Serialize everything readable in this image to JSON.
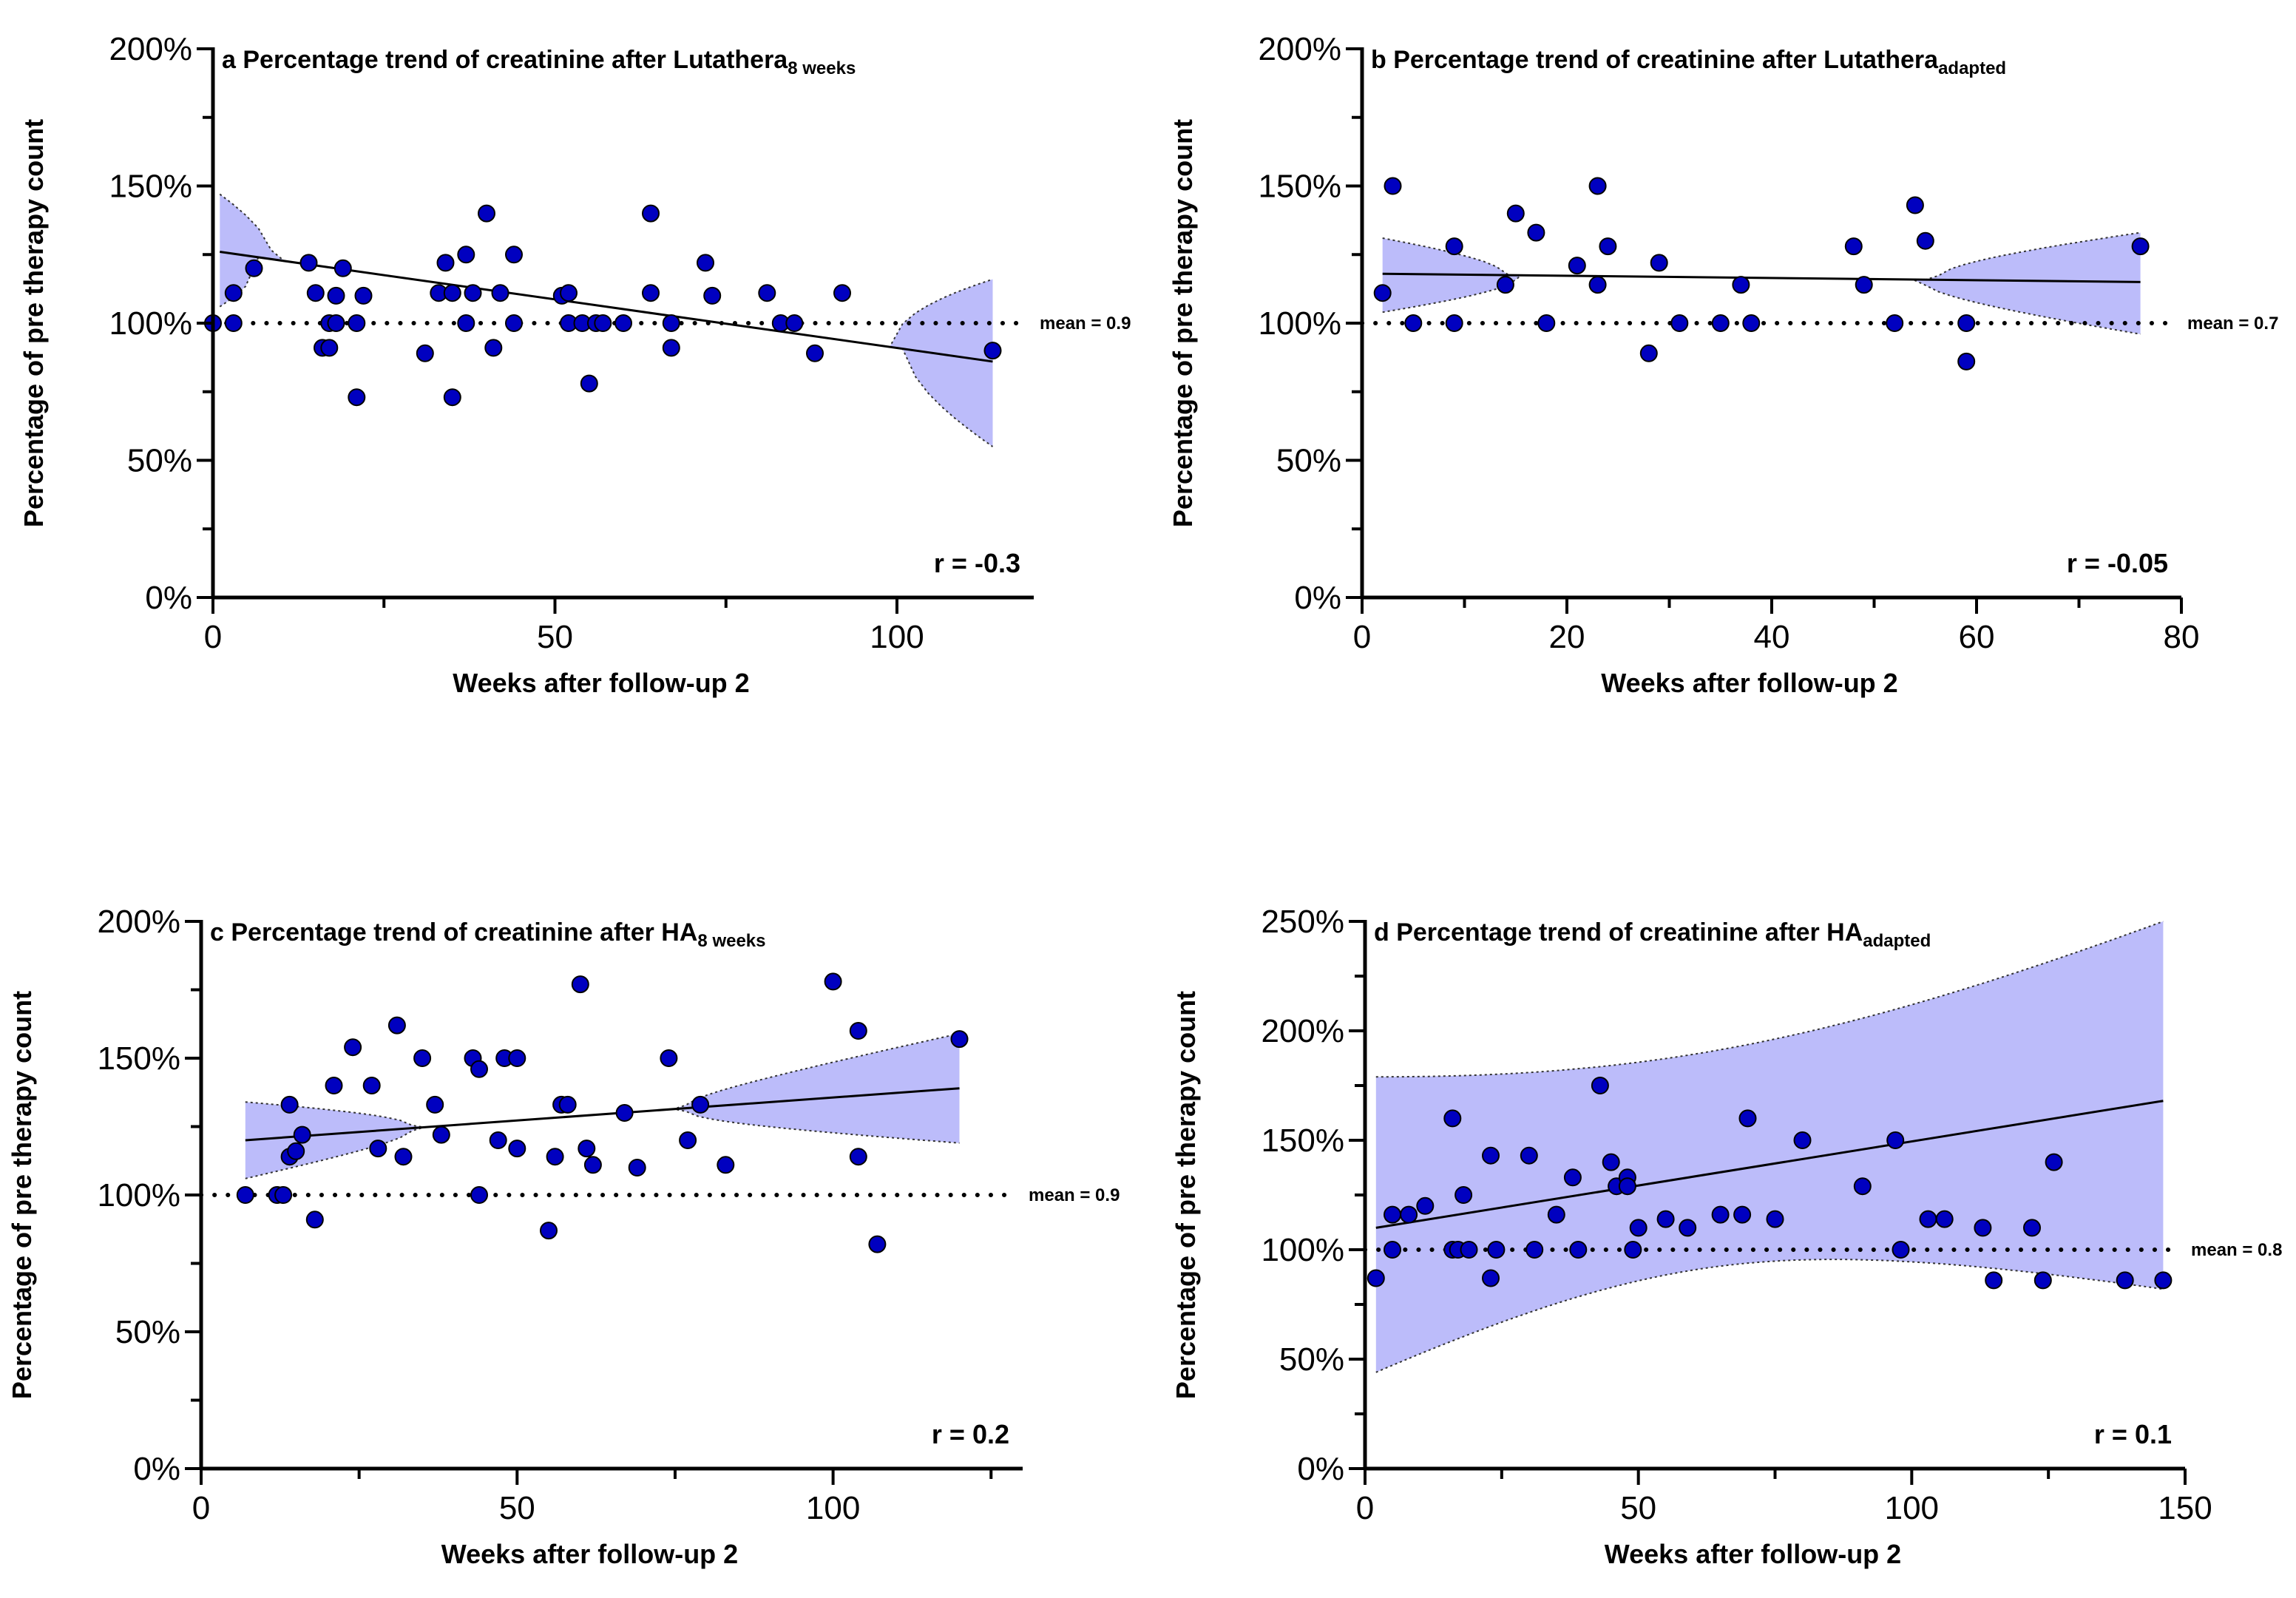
{
  "chart_data": [
    {
      "panel": "a",
      "type": "scatter",
      "title_prefix": "a Percentage trend of creatinine after Lutathera",
      "title_sub": "8 weeks",
      "xlabel": "Weeks after follow-up 2",
      "ylabel": "Percentage of pre therapy count",
      "xlim": [
        0,
        120
      ],
      "ylim": [
        0,
        2.0
      ],
      "xticks": [
        0,
        50,
        100
      ],
      "xtick_labels": [
        "0",
        "50",
        "100"
      ],
      "yticks": [
        0,
        0.5,
        1.0,
        1.5,
        2.0
      ],
      "ytick_labels": [
        "0%",
        "50%",
        "100%",
        "150%",
        "200%"
      ],
      "r_label": "r = -0.3",
      "mean_label": "mean = 0.9",
      "mean_y": 1.0,
      "regression": {
        "x0": 1,
        "y0": 1.26,
        "x1": 114,
        "y1": 0.86
      },
      "band": {
        "x": [
          1,
          114
        ],
        "upper": [
          1.47,
          1.16
        ],
        "lower": [
          1.06,
          0.55
        ],
        "center": 54
      },
      "points": [
        [
          0,
          1.0
        ],
        [
          3,
          1.11
        ],
        [
          3,
          1.0
        ],
        [
          6,
          1.2
        ],
        [
          14,
          1.22
        ],
        [
          15,
          1.11
        ],
        [
          16,
          0.91
        ],
        [
          17,
          1.0
        ],
        [
          17,
          0.91
        ],
        [
          18,
          1.1
        ],
        [
          18,
          1.0
        ],
        [
          19,
          1.2
        ],
        [
          21,
          0.73
        ],
        [
          21,
          1.0
        ],
        [
          22,
          1.1
        ],
        [
          31,
          0.89
        ],
        [
          33,
          1.11
        ],
        [
          34,
          1.22
        ],
        [
          35,
          1.11
        ],
        [
          35,
          0.73
        ],
        [
          37,
          1.25
        ],
        [
          37,
          1.0
        ],
        [
          38,
          1.11
        ],
        [
          40,
          1.4
        ],
        [
          41,
          0.91
        ],
        [
          42,
          1.11
        ],
        [
          44,
          1.25
        ],
        [
          44,
          1.0
        ],
        [
          51,
          1.1
        ],
        [
          52,
          1.11
        ],
        [
          52,
          1.0
        ],
        [
          54,
          1.0
        ],
        [
          55,
          0.78
        ],
        [
          56,
          1.0
        ],
        [
          57,
          1.0
        ],
        [
          60,
          1.0
        ],
        [
          64,
          1.4
        ],
        [
          64,
          1.11
        ],
        [
          67,
          1.0
        ],
        [
          67,
          0.91
        ],
        [
          72,
          1.22
        ],
        [
          73,
          1.1
        ],
        [
          81,
          1.11
        ],
        [
          83,
          1.0
        ],
        [
          85,
          1.0
        ],
        [
          88,
          0.89
        ],
        [
          92,
          1.11
        ],
        [
          114,
          0.9
        ]
      ]
    },
    {
      "panel": "b",
      "type": "scatter",
      "title_prefix": "b Percentage trend of creatinine after Lutathera",
      "title_sub": "adapted",
      "xlabel": "Weeks after follow-up 2",
      "ylabel": "Percentage of pre therapy count",
      "xlim": [
        0,
        80
      ],
      "ylim": [
        0,
        2.0
      ],
      "xticks": [
        0,
        20,
        40,
        60,
        80
      ],
      "xtick_labels": [
        "0",
        "20",
        "40",
        "60",
        "80"
      ],
      "yticks": [
        0,
        0.5,
        1.0,
        1.5,
        2.0
      ],
      "ytick_labels": [
        "0%",
        "50%",
        "100%",
        "150%",
        "200%"
      ],
      "r_label": "r = -0.05",
      "mean_label": "mean = 0.7",
      "mean_y": 1.0,
      "regression": {
        "x0": 2,
        "y0": 1.18,
        "x1": 76,
        "y1": 1.15
      },
      "band": {
        "x": [
          2,
          76
        ],
        "upper": [
          1.31,
          1.33
        ],
        "lower": [
          1.04,
          0.96
        ],
        "center": 35
      },
      "points": [
        [
          2,
          1.11
        ],
        [
          3,
          1.5
        ],
        [
          5,
          1.0
        ],
        [
          9,
          1.28
        ],
        [
          9,
          1.0
        ],
        [
          14,
          1.14
        ],
        [
          15,
          1.4
        ],
        [
          17,
          1.33
        ],
        [
          18,
          1.0
        ],
        [
          21,
          1.21
        ],
        [
          23,
          1.5
        ],
        [
          23,
          1.14
        ],
        [
          24,
          1.28
        ],
        [
          28,
          0.89
        ],
        [
          29,
          1.22
        ],
        [
          31,
          1.0
        ],
        [
          35,
          1.0
        ],
        [
          37,
          1.14
        ],
        [
          38,
          1.0
        ],
        [
          48,
          1.28
        ],
        [
          49,
          1.14
        ],
        [
          52,
          1.0
        ],
        [
          54,
          1.43
        ],
        [
          55,
          1.3
        ],
        [
          59,
          1.0
        ],
        [
          59,
          0.86
        ],
        [
          76,
          1.28
        ]
      ]
    },
    {
      "panel": "c",
      "type": "scatter",
      "title_prefix": "c Percentage trend of creatinine after HA",
      "title_sub": "8 weeks",
      "xlabel": "Weeks after follow-up 2",
      "ylabel": "Percentage of pre therapy count",
      "xlim": [
        0,
        130
      ],
      "ylim": [
        0,
        2.0
      ],
      "xticks": [
        0,
        50,
        100
      ],
      "xtick_labels": [
        "0",
        "50",
        "100"
      ],
      "yticks": [
        0,
        0.5,
        1.0,
        1.5,
        2.0
      ],
      "ytick_labels": [
        "0%",
        "50%",
        "100%",
        "150%",
        "200%"
      ],
      "r_label": "r = 0.2",
      "mean_label": "mean = 0.9",
      "mean_y": 1.0,
      "regression": {
        "x0": 7,
        "y0": 1.2,
        "x1": 120,
        "y1": 1.39
      },
      "band": {
        "x": [
          7,
          120
        ],
        "upper": [
          1.34,
          1.59
        ],
        "lower": [
          1.06,
          1.19
        ],
        "center": 55
      },
      "points": [
        [
          7,
          1.0
        ],
        [
          12,
          1.0
        ],
        [
          13,
          1.0
        ],
        [
          14,
          1.33
        ],
        [
          14,
          1.14
        ],
        [
          15,
          1.16
        ],
        [
          16,
          1.22
        ],
        [
          18,
          0.91
        ],
        [
          21,
          1.4
        ],
        [
          24,
          1.54
        ],
        [
          27,
          1.4
        ],
        [
          28,
          1.17
        ],
        [
          31,
          1.62
        ],
        [
          32,
          1.14
        ],
        [
          35,
          1.5
        ],
        [
          37,
          1.33
        ],
        [
          38,
          1.22
        ],
        [
          43,
          1.5
        ],
        [
          44,
          1.46
        ],
        [
          44,
          1.0
        ],
        [
          47,
          1.2
        ],
        [
          48,
          1.5
        ],
        [
          50,
          1.5
        ],
        [
          50,
          1.17
        ],
        [
          55,
          0.87
        ],
        [
          56,
          1.14
        ],
        [
          57,
          1.33
        ],
        [
          58,
          1.33
        ],
        [
          60,
          1.77
        ],
        [
          61,
          1.17
        ],
        [
          62,
          1.11
        ],
        [
          67,
          1.3
        ],
        [
          69,
          1.1
        ],
        [
          74,
          1.5
        ],
        [
          77,
          1.2
        ],
        [
          79,
          1.33
        ],
        [
          83,
          1.11
        ],
        [
          100,
          1.78
        ],
        [
          104,
          1.6
        ],
        [
          104,
          1.14
        ],
        [
          107,
          0.82
        ],
        [
          120,
          1.57
        ]
      ]
    },
    {
      "panel": "d",
      "type": "scatter",
      "title_prefix": "d Percentage trend of creatinine after HA",
      "title_sub": "adapted",
      "xlabel": "Weeks after follow-up 2",
      "ylabel": "Percentage of pre therapy count",
      "xlim": [
        0,
        150
      ],
      "ylim": [
        0,
        2.5
      ],
      "xticks": [
        0,
        50,
        100,
        150
      ],
      "xtick_labels": [
        "0",
        "50",
        "100",
        "150"
      ],
      "yticks": [
        0,
        0.5,
        1.0,
        1.5,
        2.0,
        2.5
      ],
      "ytick_labels": [
        "0%",
        "50%",
        "100%",
        "150%",
        "200%",
        "250%"
      ],
      "r_label": "r = 0.1",
      "mean_label": "mean = 0.8",
      "mean_y": 1.0,
      "regression": {
        "x0": 2,
        "y0": 1.1,
        "x1": 146,
        "y1": 1.68
      },
      "band": {
        "x": [
          2,
          146
        ],
        "upper": [
          1.79,
          2.5
        ],
        "lower": [
          0.44,
          0.82
        ],
        "center": 60
      },
      "points": [
        [
          2,
          0.87
        ],
        [
          5,
          1.16
        ],
        [
          5,
          1.0
        ],
        [
          8,
          1.16
        ],
        [
          11,
          1.2
        ],
        [
          16,
          1.6
        ],
        [
          16,
          1.0
        ],
        [
          17,
          1.0
        ],
        [
          18,
          1.25
        ],
        [
          19,
          1.0
        ],
        [
          23,
          1.43
        ],
        [
          23,
          0.87
        ],
        [
          24,
          1.0
        ],
        [
          30,
          1.43
        ],
        [
          31,
          1.0
        ],
        [
          35,
          1.16
        ],
        [
          38,
          1.33
        ],
        [
          39,
          1.0
        ],
        [
          43,
          1.75
        ],
        [
          45,
          1.4
        ],
        [
          46,
          1.29
        ],
        [
          48,
          1.33
        ],
        [
          48,
          1.29
        ],
        [
          49,
          1.0
        ],
        [
          50,
          1.1
        ],
        [
          55,
          1.14
        ],
        [
          59,
          1.1
        ],
        [
          65,
          1.16
        ],
        [
          69,
          1.16
        ],
        [
          70,
          1.6
        ],
        [
          75,
          1.14
        ],
        [
          80,
          1.5
        ],
        [
          91,
          1.29
        ],
        [
          97,
          1.5
        ],
        [
          98,
          1.0
        ],
        [
          103,
          1.14
        ],
        [
          106,
          1.14
        ],
        [
          113,
          1.1
        ],
        [
          115,
          0.86
        ],
        [
          122,
          1.1
        ],
        [
          124,
          0.86
        ],
        [
          126,
          1.4
        ],
        [
          139,
          0.86
        ],
        [
          146,
          0.86
        ]
      ]
    }
  ]
}
